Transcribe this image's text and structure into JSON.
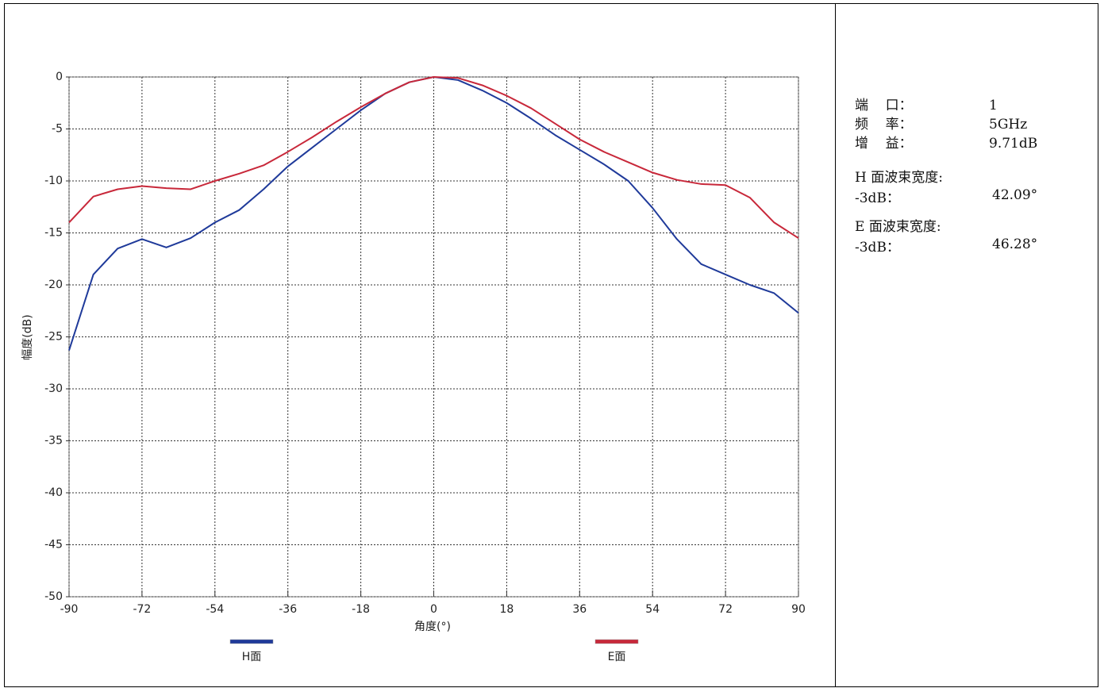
{
  "chart_data": {
    "type": "line",
    "xlabel": "角度(°)",
    "ylabel": "幅度(dB)",
    "x": [
      -90,
      -84,
      -78,
      -72,
      -66,
      -60,
      -54,
      -48,
      -42,
      -36,
      -30,
      -24,
      -18,
      -12,
      -6,
      0,
      6,
      12,
      18,
      24,
      30,
      36,
      42,
      48,
      54,
      60,
      66,
      72,
      78,
      84,
      90
    ],
    "series": [
      {
        "name": "H面",
        "color": "#1f3a9a",
        "values": [
          -26.3,
          -19.0,
          -16.5,
          -15.6,
          -16.4,
          -15.5,
          -14.0,
          -12.8,
          -10.8,
          -8.6,
          -6.8,
          -5.0,
          -3.2,
          -1.6,
          -0.5,
          0,
          -0.3,
          -1.3,
          -2.5,
          -4.0,
          -5.6,
          -7.0,
          -8.4,
          -10.0,
          -12.6,
          -15.6,
          -18.0,
          -19.0,
          -20.0,
          -20.8,
          -22.7
        ]
      },
      {
        "name": "E面",
        "color": "#c8283a",
        "values": [
          -14.0,
          -11.5,
          -10.8,
          -10.5,
          -10.7,
          -10.8,
          -10.0,
          -9.3,
          -8.5,
          -7.2,
          -5.8,
          -4.3,
          -2.9,
          -1.6,
          -0.5,
          0,
          -0.1,
          -0.8,
          -1.8,
          -3.0,
          -4.5,
          -6.0,
          -7.2,
          -8.2,
          -9.2,
          -9.9,
          -10.3,
          -10.4,
          -11.6,
          -14.0,
          -15.5
        ]
      }
    ],
    "xlim": [
      -90,
      90
    ],
    "xticks": [
      -90,
      -72,
      -54,
      -36,
      -18,
      0,
      18,
      36,
      54,
      72,
      90
    ],
    "ylim": [
      -50,
      0
    ],
    "yticks": [
      0,
      -5,
      -10,
      -15,
      -20,
      -25,
      -30,
      -35,
      -40,
      -45,
      -50
    ],
    "grid": true,
    "legend": "bottom"
  },
  "info": {
    "rows": [
      {
        "label": "端    口：",
        "value": "1"
      },
      {
        "label": "频    率：",
        "value": "5GHz"
      },
      {
        "label": "增    益：",
        "value": "9.71dB"
      }
    ],
    "beams": [
      {
        "title": "H 面波束宽度:",
        "sub": "-3dB：",
        "value": "42.09°"
      },
      {
        "title": "E 面波束宽度:",
        "sub": "-3dB：",
        "value": "46.28°"
      }
    ]
  }
}
